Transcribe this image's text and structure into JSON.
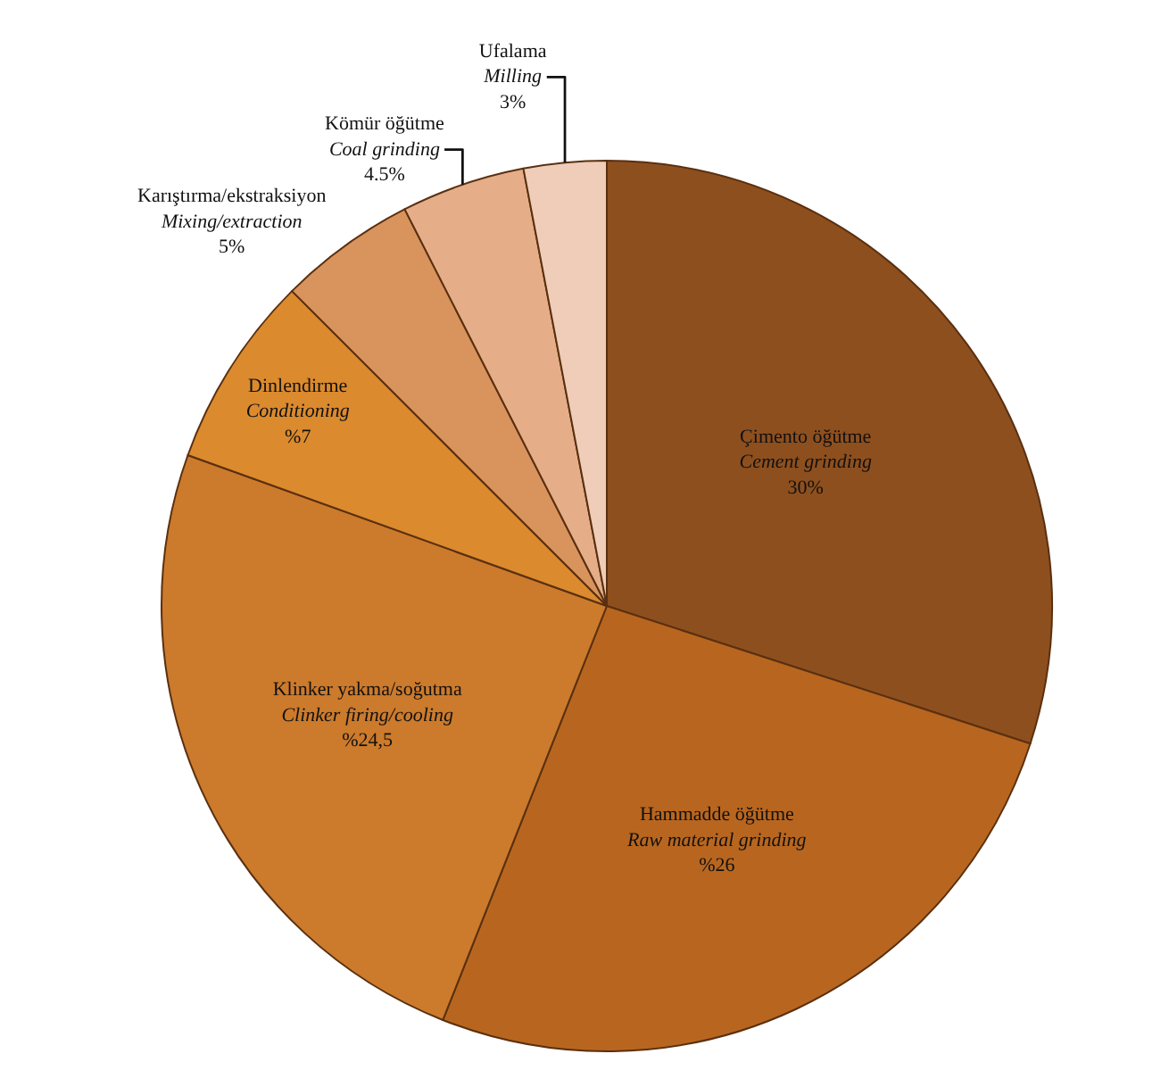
{
  "chart_data": {
    "type": "pie",
    "categories": [
      "Çimento öğütme\nCement grinding",
      "Hammadde öğütme\nRaw material grinding",
      "Klinker yakma/soğutma\nClinker firing/cooling",
      "Dinlendirme\nConditioning",
      "Karıştırma/ekstraksiyon\nMixing/extraction",
      "Kömür öğütme\nCoal grinding",
      "Ufalama\nMilling"
    ],
    "values": [
      30,
      26,
      24.5,
      7,
      5,
      4.5,
      3
    ],
    "value_labels": [
      "30%",
      "%26",
      "%24,5",
      "%7",
      "5%",
      "4.5%",
      "3%"
    ],
    "colors": [
      "#8e4f1e",
      "#b8661f",
      "#cc7a2c",
      "#db8a2e",
      "#d9935c",
      "#e5ae88",
      "#efcdb8"
    ],
    "legend": false
  }
}
